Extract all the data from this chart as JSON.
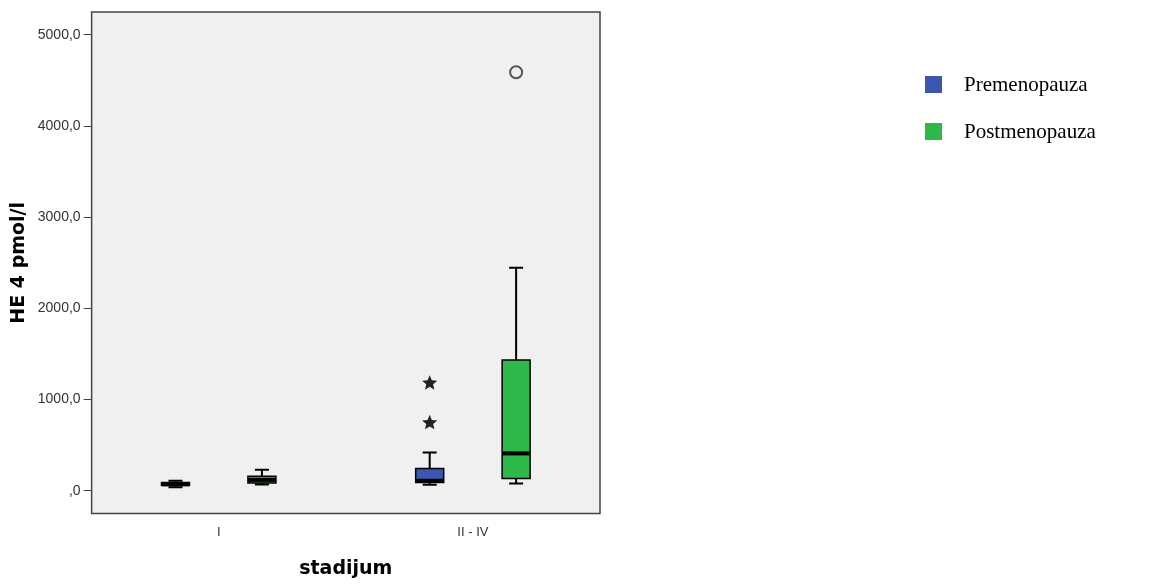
{
  "chart_data": {
    "type": "box",
    "xlabel": "stadijum",
    "ylabel": "HE 4 pmol/l",
    "categories": [
      "I",
      "II - IV"
    ],
    "ylim": [
      -250,
      5250
    ],
    "yticks": [
      {
        "value": 0,
        "label": ",0"
      },
      {
        "value": 1000,
        "label": "1000,0"
      },
      {
        "value": 2000,
        "label": "2000,0"
      },
      {
        "value": 3000,
        "label": "3000,0"
      },
      {
        "value": 4000,
        "label": "4000,0"
      },
      {
        "value": 5000,
        "label": "5000,0"
      }
    ],
    "grid": false,
    "legend": "right",
    "series": [
      {
        "name": "Premenopauza",
        "color": "#3b57b0",
        "marker": "star",
        "boxes": [
          {
            "low": 40,
            "q1": 60,
            "median": 70,
            "q3": 90,
            "high": 110
          },
          {
            "low": 65,
            "q1": 90,
            "median": 110,
            "q3": 245,
            "high": 420,
            "outliers": [
              745,
              1180
            ]
          }
        ]
      },
      {
        "name": "Postmenopauza",
        "color": "#2fb84a",
        "marker": "circle",
        "boxes": [
          {
            "low": 70,
            "q1": 85,
            "median": 120,
            "q3": 160,
            "high": 230
          },
          {
            "low": 80,
            "q1": 135,
            "median": 410,
            "q3": 1433,
            "high": 2445,
            "outliers": [
              4590
            ]
          }
        ]
      }
    ]
  }
}
